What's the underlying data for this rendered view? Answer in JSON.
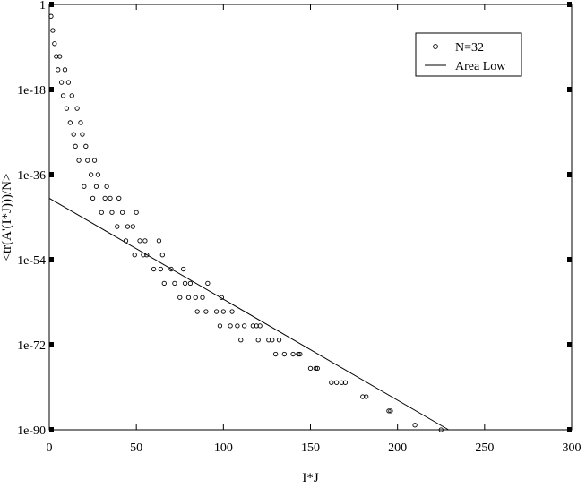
{
  "chart_data": {
    "type": "scatter",
    "xlabel": "I*J",
    "ylabel": "<tr(A'(I*J)))/N>",
    "xlim": [
      0,
      300
    ],
    "ylim": [
      -90,
      0
    ],
    "y_scale": "log10",
    "x_ticks": [
      0,
      50,
      100,
      150,
      200,
      250,
      300
    ],
    "y_ticks": [
      "1",
      "1e-18",
      "1e-36",
      "1e-54",
      "1e-72",
      "1e-90"
    ],
    "y_tick_exponents": [
      0,
      -18,
      -36,
      -54,
      -72,
      -90
    ],
    "legend_position": "top-right",
    "series": [
      {
        "name": "N=32",
        "style": "open-circle",
        "points": [
          [
            1,
            -2.5
          ],
          [
            2,
            -5.5
          ],
          [
            3,
            -8.3
          ],
          [
            4,
            -11
          ],
          [
            5,
            -13.8
          ],
          [
            6,
            -11
          ],
          [
            7,
            -16.5
          ],
          [
            8,
            -19.3
          ],
          [
            9,
            -13.8
          ],
          [
            10,
            -22
          ],
          [
            11,
            -16.5
          ],
          [
            12,
            -25
          ],
          [
            13,
            -19.3
          ],
          [
            14,
            -27.5
          ],
          [
            15,
            -30
          ],
          [
            16,
            -22
          ],
          [
            17,
            -33
          ],
          [
            18,
            -25
          ],
          [
            19,
            -27.5
          ],
          [
            20,
            -38.5
          ],
          [
            21,
            -30
          ],
          [
            22,
            -33
          ],
          [
            24,
            -36
          ],
          [
            25,
            -41
          ],
          [
            26,
            -33
          ],
          [
            27,
            -38.5
          ],
          [
            28,
            -36
          ],
          [
            30,
            -44
          ],
          [
            32,
            -41
          ],
          [
            33,
            -38.5
          ],
          [
            35,
            -41
          ],
          [
            36,
            -44
          ],
          [
            39,
            -47
          ],
          [
            40,
            -41
          ],
          [
            42,
            -44
          ],
          [
            44,
            -50
          ],
          [
            45,
            -47
          ],
          [
            48,
            -47
          ],
          [
            49,
            -53
          ],
          [
            50,
            -44
          ],
          [
            52,
            -50
          ],
          [
            54,
            -53
          ],
          [
            55,
            -50
          ],
          [
            56,
            -53
          ],
          [
            60,
            -56
          ],
          [
            63,
            -50
          ],
          [
            64,
            -56
          ],
          [
            65,
            -53
          ],
          [
            66,
            -59
          ],
          [
            70,
            -56
          ],
          [
            72,
            -59
          ],
          [
            75,
            -62
          ],
          [
            77,
            -56
          ],
          [
            78,
            -59
          ],
          [
            80,
            -62
          ],
          [
            81,
            -59
          ],
          [
            84,
            -62
          ],
          [
            85,
            -65
          ],
          [
            88,
            -62
          ],
          [
            90,
            -65
          ],
          [
            91,
            -59
          ],
          [
            96,
            -65
          ],
          [
            98,
            -68
          ],
          [
            99,
            -62
          ],
          [
            100,
            -65
          ],
          [
            104,
            -68
          ],
          [
            105,
            -65
          ],
          [
            108,
            -68
          ],
          [
            110,
            -71
          ],
          [
            112,
            -68
          ],
          [
            117,
            -68
          ],
          [
            119,
            -68
          ],
          [
            120,
            -71
          ],
          [
            121,
            -68
          ],
          [
            126,
            -71
          ],
          [
            128,
            -71
          ],
          [
            130,
            -74
          ],
          [
            132,
            -71
          ],
          [
            135,
            -74
          ],
          [
            140,
            -74
          ],
          [
            143,
            -74
          ],
          [
            144,
            -74
          ],
          [
            150,
            -77
          ],
          [
            153,
            -77
          ],
          [
            154,
            -77
          ],
          [
            162,
            -80
          ],
          [
            165,
            -80
          ],
          [
            168,
            -80
          ],
          [
            170,
            -80
          ],
          [
            180,
            -83
          ],
          [
            182,
            -83
          ],
          [
            195,
            -86
          ],
          [
            196,
            -86
          ],
          [
            210,
            -89
          ],
          [
            225,
            -92
          ]
        ]
      },
      {
        "name": "Area Low",
        "style": "line",
        "points": [
          [
            0,
            -41
          ],
          [
            234,
            -91
          ]
        ]
      }
    ]
  }
}
